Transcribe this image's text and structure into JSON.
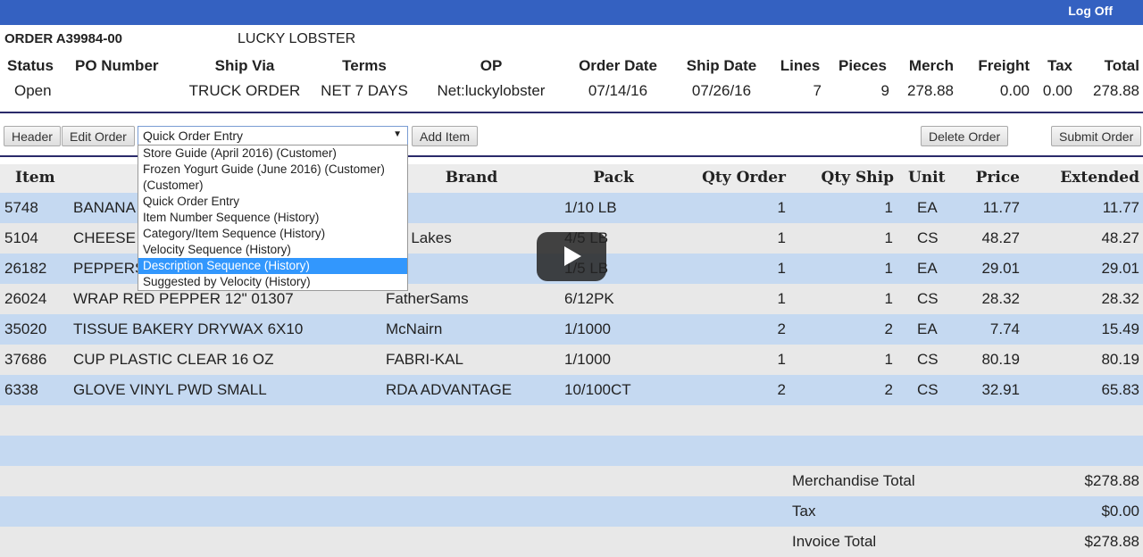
{
  "topbar": {
    "logoff": "Log Off",
    "color": "#3461c1"
  },
  "order": {
    "number": "ORDER A39984-00",
    "customer": "LUCKY LOBSTER"
  },
  "summary": {
    "headers": [
      "Status",
      "PO Number",
      "Ship Via",
      "Terms",
      "OP",
      "Order Date",
      "Ship Date",
      "Lines",
      "Pieces",
      "Merch",
      "Freight",
      "Tax",
      "Total"
    ],
    "values": [
      "Open",
      "",
      "TRUCK ORDER",
      "NET 7 DAYS",
      "Net:luckylobster",
      "07/14/16",
      "07/26/16",
      "7",
      "9",
      "278.88",
      "0.00",
      "0.00",
      "278.88"
    ]
  },
  "toolbar": {
    "header": "Header",
    "edit_order": "Edit Order",
    "entry_select": "Quick Order Entry",
    "add_item": "Add Item",
    "delete_order": "Delete Order",
    "submit_order": "Submit Order"
  },
  "dropdown_options": [
    "Store Guide (April 2016) (Customer)",
    "Frozen Yogurt Guide (June 2016) (Customer)",
    "(Customer)",
    "Quick Order Entry",
    "Item Number Sequence (History)",
    "Category/Item Sequence (History)",
    "Velocity Sequence (History)",
    "Description Sequence (History)",
    "Suggested by Velocity (History)"
  ],
  "table": {
    "headers": [
      "Item",
      "Brand",
      "Pack",
      "Qty Order",
      "Qty Ship",
      "Unit",
      "Price",
      "Extended"
    ],
    "rows": [
      {
        "item": "5748",
        "desc": "BANANA",
        "brand": "sh",
        "pack": "1/10 LB",
        "qty": "1",
        "ship": "1",
        "unit": "EA",
        "price": "11.77",
        "ext": "11.77"
      },
      {
        "item": "5104",
        "desc": "CHEESE S",
        "brand": "eat Lakes",
        "pack": "4/5 LB",
        "qty": "1",
        "ship": "1",
        "unit": "CS",
        "price": "48.27",
        "ext": "48.27"
      },
      {
        "item": "26182",
        "desc": "PEPPERS",
        "brand": "sh",
        "pack": "1/5 LB",
        "qty": "1",
        "ship": "1",
        "unit": "EA",
        "price": "29.01",
        "ext": "29.01"
      },
      {
        "item": "26024",
        "desc": "WRAP RED PEPPER 12\" 01307",
        "brand": "FatherSams",
        "pack": "6/12PK",
        "qty": "1",
        "ship": "1",
        "unit": "CS",
        "price": "28.32",
        "ext": "28.32"
      },
      {
        "item": "35020",
        "desc": "TISSUE BAKERY DRYWAX 6X10",
        "brand": "McNairn",
        "pack": "1/1000",
        "qty": "2",
        "ship": "2",
        "unit": "EA",
        "price": "7.74",
        "ext": "15.49"
      },
      {
        "item": "37686",
        "desc": "CUP PLASTIC CLEAR 16 OZ",
        "brand": "FABRI-KAL",
        "pack": "1/1000",
        "qty": "1",
        "ship": "1",
        "unit": "CS",
        "price": "80.19",
        "ext": "80.19"
      },
      {
        "item": "6338",
        "desc": "GLOVE VINYL PWD SMALL",
        "brand": "RDA ADVANTAGE",
        "pack": "10/100CT",
        "qty": "2",
        "ship": "2",
        "unit": "CS",
        "price": "32.91",
        "ext": "65.83"
      }
    ]
  },
  "totals": [
    {
      "label": "Merchandise Total",
      "value": "$278.88"
    },
    {
      "label": "Tax",
      "value": "$0.00"
    },
    {
      "label": "Invoice Total",
      "value": "$278.88"
    }
  ]
}
